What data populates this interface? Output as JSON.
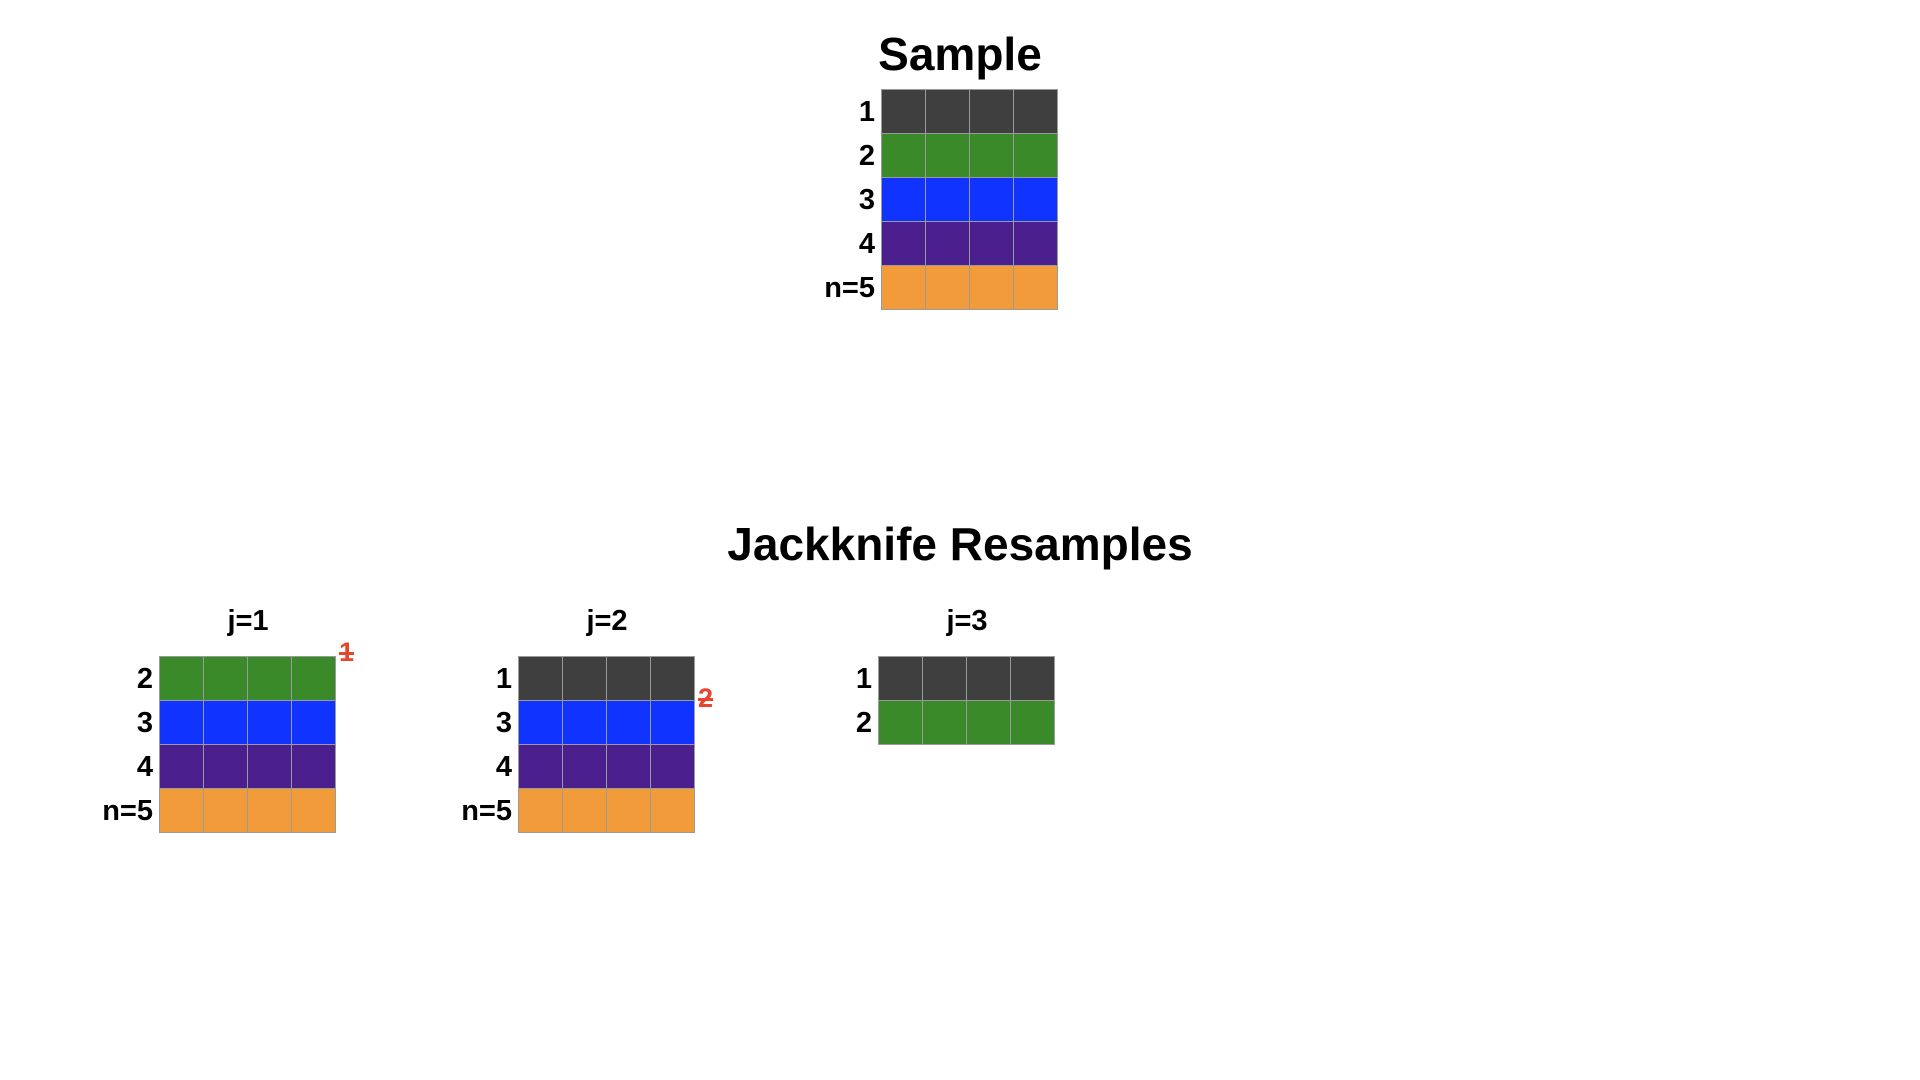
{
  "sample": {
    "title": "Sample",
    "rows": [
      {
        "label": "1",
        "color": "#3f3f3f"
      },
      {
        "label": "2",
        "color": "#3a8a2a"
      },
      {
        "label": "3",
        "color": "#1133ff"
      },
      {
        "label": "4",
        "color": "#4c1f8e"
      },
      {
        "label": "n=5",
        "color": "#f19b3a"
      }
    ]
  },
  "resamples": {
    "title": "Jackknife Resamples",
    "removed_color": "#e8452f",
    "panels": [
      {
        "label": "j=1",
        "removed": "1",
        "rows": [
          {
            "label": "2",
            "color": "#3a8a2a"
          },
          {
            "label": "3",
            "color": "#1133ff"
          },
          {
            "label": "4",
            "color": "#4c1f8e"
          },
          {
            "label": "n=5",
            "color": "#f19b3a"
          }
        ]
      },
      {
        "label": "j=2",
        "removed": "2",
        "rows": [
          {
            "label": "1",
            "color": "#3f3f3f"
          },
          {
            "label": "3",
            "color": "#1133ff"
          },
          {
            "label": "4",
            "color": "#4c1f8e"
          },
          {
            "label": "n=5",
            "color": "#f19b3a"
          }
        ]
      },
      {
        "label": "j=3",
        "removed": "",
        "rows": [
          {
            "label": "1",
            "color": "#3f3f3f"
          },
          {
            "label": "2",
            "color": "#3a8a2a"
          }
        ]
      }
    ]
  }
}
